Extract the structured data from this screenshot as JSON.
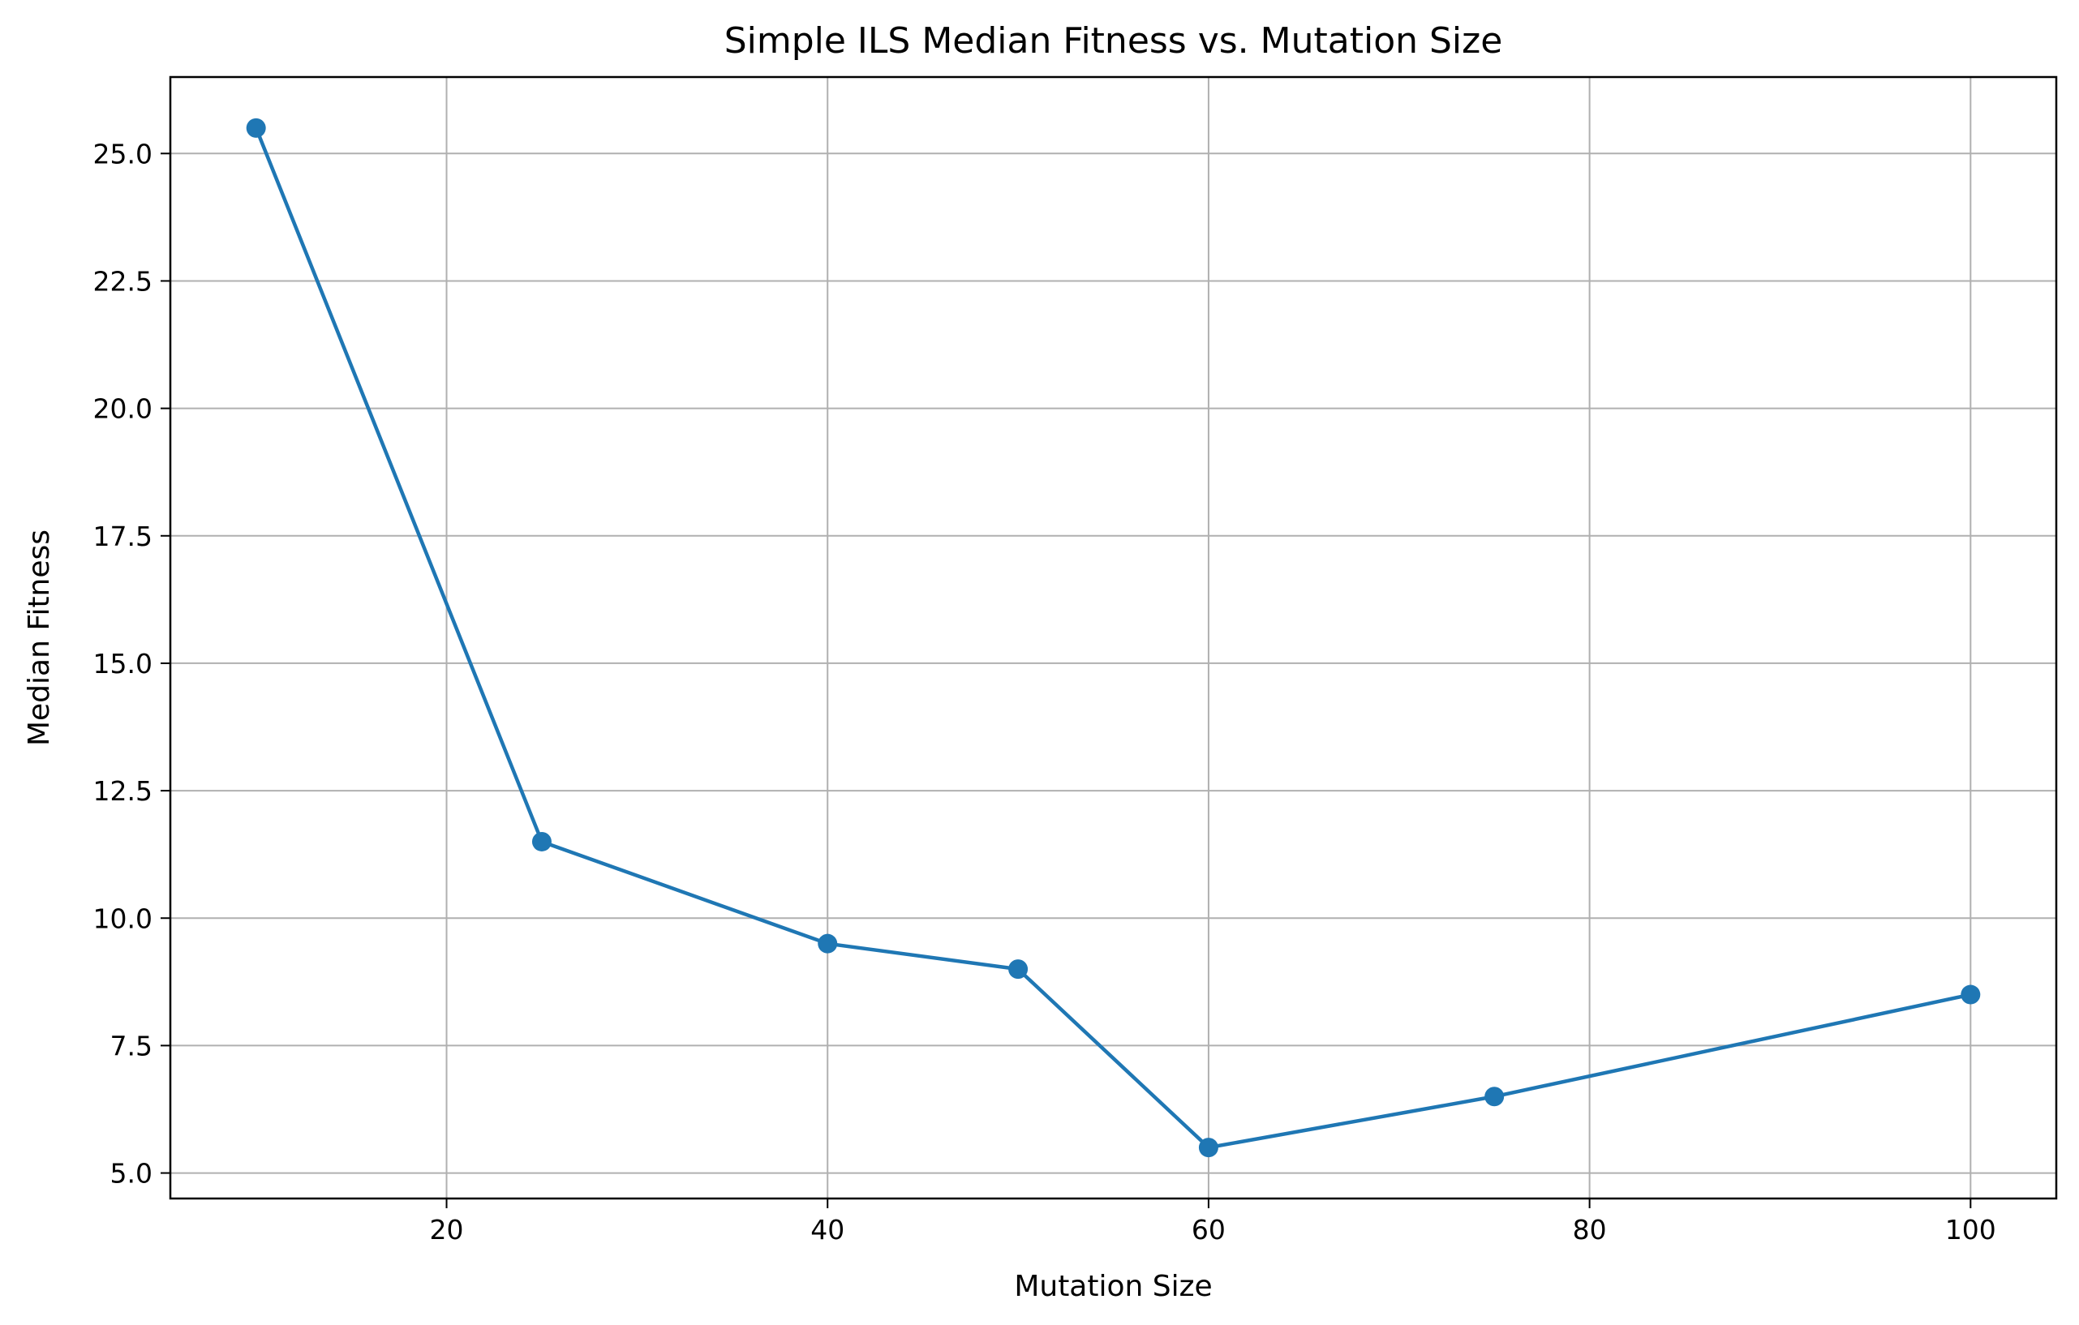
{
  "chart_data": {
    "type": "line",
    "title": "Simple ILS Median Fitness vs. Mutation Size",
    "xlabel": "Mutation Size",
    "ylabel": "Median Fitness",
    "x": [
      10,
      25,
      40,
      50,
      60,
      75,
      100
    ],
    "series": [
      {
        "values": [
          25.5,
          11.5,
          9.5,
          9.0,
          5.5,
          6.5,
          8.5
        ],
        "color": "#1f77b4",
        "marker": "circle"
      }
    ],
    "xlim": [
      5.5,
      104.5
    ],
    "ylim": [
      4.5,
      26.5
    ],
    "xticks": [
      20,
      40,
      60,
      80,
      100
    ],
    "xtick_labels": [
      "20",
      "40",
      "60",
      "80",
      "100"
    ],
    "yticks": [
      5.0,
      7.5,
      10.0,
      12.5,
      15.0,
      17.5,
      20.0,
      22.5,
      25.0
    ],
    "ytick_labels": [
      "5.0",
      "7.5",
      "10.0",
      "12.5",
      "15.0",
      "17.5",
      "20.0",
      "22.5",
      "25.0"
    ],
    "grid": true,
    "grid_color": "#b0b0b0",
    "line_color": "#1f77b4"
  }
}
